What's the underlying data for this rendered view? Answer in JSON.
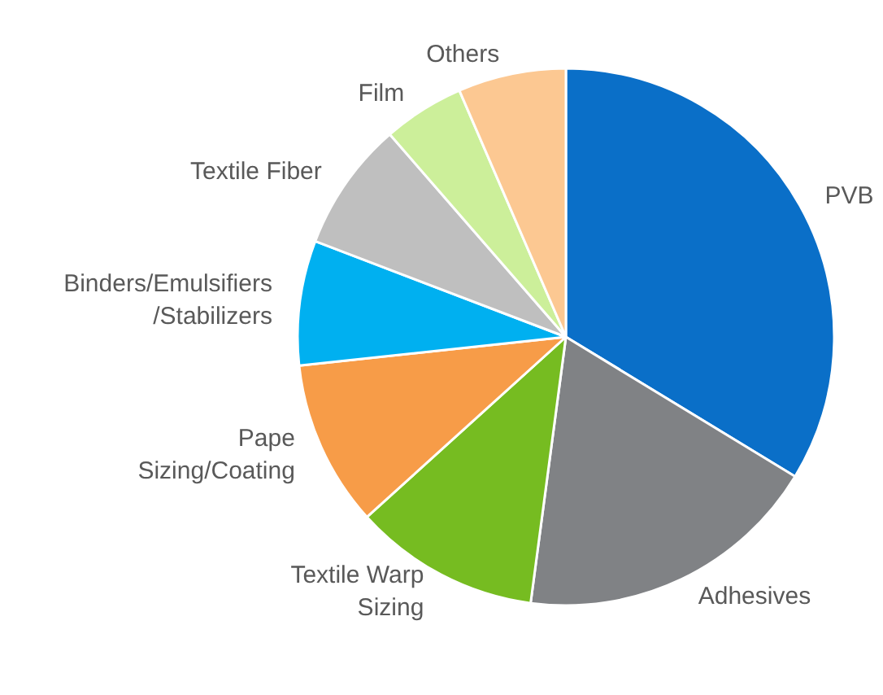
{
  "chart_data": {
    "type": "pie",
    "categories": [
      "PVB",
      "Adhesives",
      "Textile Warp\nSizing",
      "Pape\nSizing/Coating",
      "Binders/Emulsifiers\n/Stabilizers",
      "Textile Fiber",
      "Film",
      "Others"
    ],
    "values": [
      33.7,
      18.4,
      11.2,
      10.0,
      7.5,
      7.8,
      4.9,
      6.5
    ],
    "colors": [
      "#0a6fc8",
      "#808285",
      "#76bc21",
      "#f79c48",
      "#00b0f0",
      "#bfbfbf",
      "#ccef9a",
      "#fcc892"
    ]
  }
}
